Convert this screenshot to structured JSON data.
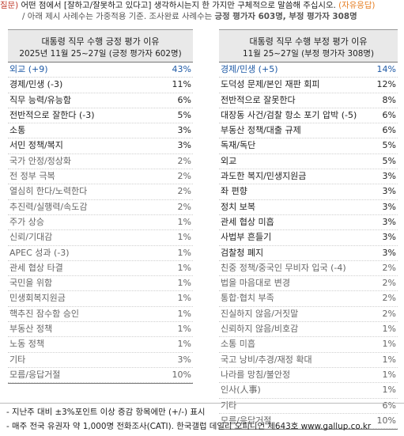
{
  "question": {
    "prefix": "질문) ",
    "line1": "어떤 점에서 [잘하고/잘못하고 있다고] 생각하시는지 한 가지만 구체적으로 말씀해 주십시오.",
    "line1_tag": " (자유응답)",
    "line2_a": "/ 아래 제시 사례수는 가중적용 기준. 조사완료 사례수는 ",
    "line2_b": "긍정 평가자 603명, 부정 평가자 308명"
  },
  "left": {
    "title": "대통령 직무 수행 긍정 평가 이유",
    "subtitle": "2025년 11월 25~27일 (긍정 평가자 602명)",
    "rows": [
      {
        "label": "외교 (+9)",
        "value": "43%",
        "style": "blue"
      },
      {
        "label": "경제/민생 (-3)",
        "value": "11%",
        "style": "black"
      },
      {
        "label": "직무 능력/유능함",
        "value": "6%",
        "style": "black"
      },
      {
        "label": "전반적으로 잘한다 (-3)",
        "value": "5%",
        "style": "black"
      },
      {
        "label": "소통",
        "value": "3%",
        "style": "black"
      },
      {
        "label": "서민 정책/복지",
        "value": "3%",
        "style": "black"
      },
      {
        "label": "국가 안정/정상화",
        "value": "2%",
        "style": "gray"
      },
      {
        "label": "전 정부 극복",
        "value": "2%",
        "style": "gray"
      },
      {
        "label": "열심히 한다/노력한다",
        "value": "2%",
        "style": "gray"
      },
      {
        "label": "추진력/실행력/속도감",
        "value": "2%",
        "style": "gray"
      },
      {
        "label": "주가 상승",
        "value": "1%",
        "style": "gray"
      },
      {
        "label": "신뢰/기대감",
        "value": "1%",
        "style": "gray"
      },
      {
        "label": "APEC 성과 (-3)",
        "value": "1%",
        "style": "gray"
      },
      {
        "label": "관세 협상 타결",
        "value": "1%",
        "style": "gray"
      },
      {
        "label": "국민을 위함",
        "value": "1%",
        "style": "gray"
      },
      {
        "label": "민생회복지원금",
        "value": "1%",
        "style": "gray"
      },
      {
        "label": "핵추진 잠수함 승인",
        "value": "1%",
        "style": "gray"
      },
      {
        "label": "부동산 정책",
        "value": "1%",
        "style": "gray"
      },
      {
        "label": "노동 정책",
        "value": "1%",
        "style": "gray"
      },
      {
        "label": "기타",
        "value": "3%",
        "style": "gray"
      },
      {
        "label": "모름/응답거절",
        "value": "10%",
        "style": "gray"
      }
    ]
  },
  "right": {
    "title": "대통령 직무 수행 부정 평가 이유",
    "subtitle": "11월 25~27일 (부정 평가자 308명)",
    "rows": [
      {
        "label": "경제/민생 (+5)",
        "value": "14%",
        "style": "blue"
      },
      {
        "label": "도덕성 문제/본인 재판 회피",
        "value": "12%",
        "style": "black"
      },
      {
        "label": "전반적으로 잘못한다",
        "value": "8%",
        "style": "black"
      },
      {
        "label": "대장동 사건/검찰 항소 포기 압박 (-5)",
        "value": "6%",
        "style": "black"
      },
      {
        "label": "부동산 정책/대출 규제",
        "value": "6%",
        "style": "black"
      },
      {
        "label": "독재/독단",
        "value": "5%",
        "style": "black"
      },
      {
        "label": "외교",
        "value": "5%",
        "style": "black"
      },
      {
        "label": "과도한 복지/민생지원금",
        "value": "3%",
        "style": "black"
      },
      {
        "label": "좌 편향",
        "value": "3%",
        "style": "black"
      },
      {
        "label": "정치 보복",
        "value": "3%",
        "style": "black"
      },
      {
        "label": "관세 협상 미흡",
        "value": "3%",
        "style": "black"
      },
      {
        "label": "사법부 흔들기",
        "value": "3%",
        "style": "black"
      },
      {
        "label": "검찰청 폐지",
        "value": "3%",
        "style": "black"
      },
      {
        "label": "친중 정책/중국인 무비자 입국 (-4)",
        "value": "2%",
        "style": "gray"
      },
      {
        "label": "법을 마음대로 변경",
        "value": "2%",
        "style": "gray"
      },
      {
        "label": "통합·협치 부족",
        "value": "2%",
        "style": "gray"
      },
      {
        "label": "진실하지 않음/거짓말",
        "value": "2%",
        "style": "gray"
      },
      {
        "label": "신뢰하지 않음/비호감",
        "value": "1%",
        "style": "gray"
      },
      {
        "label": "소통 미흡",
        "value": "1%",
        "style": "gray"
      },
      {
        "label": "국고 낭비/추경/재정 확대",
        "value": "1%",
        "style": "gray"
      },
      {
        "label": "나라를 망침/불안정",
        "value": "1%",
        "style": "gray"
      },
      {
        "label": "인사(人事)",
        "value": "1%",
        "style": "gray"
      },
      {
        "label": "기타",
        "value": "6%",
        "style": "gray"
      },
      {
        "label": "모름/응답거절",
        "value": "10%",
        "style": "gray"
      }
    ]
  },
  "notes": {
    "line1": "- 지난주 대비 ±3%포인트 이상 증감 항목에만 (+/-) 표시",
    "line2": "- 매주 전국 유권자 약 1,000명 전화조사(CATI). 한국갤럽 데일리 오피니언 제643호 www.gallup.co.kr"
  }
}
